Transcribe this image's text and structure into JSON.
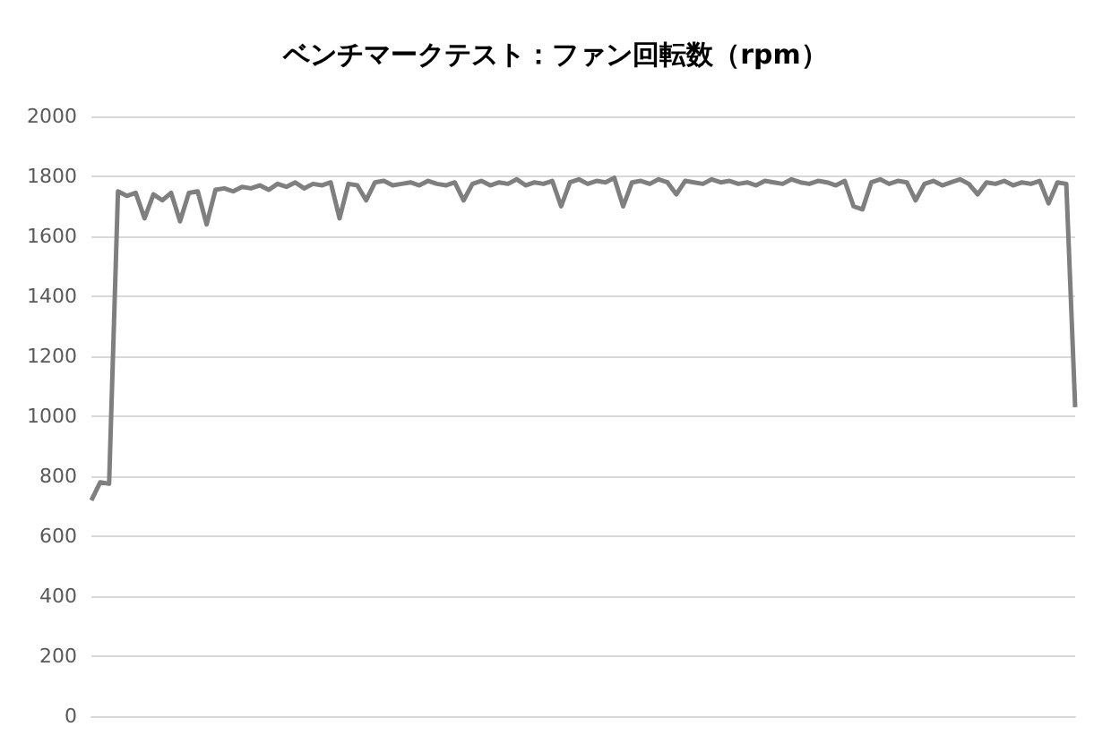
{
  "chart_data": {
    "type": "line",
    "title": "ベンチマークテスト：ファン回転数（rpm）",
    "categories": [
      null,
      null,
      null,
      null,
      null,
      null,
      null,
      null,
      null,
      null,
      null,
      null,
      null,
      null,
      null,
      null,
      null,
      null,
      null,
      null,
      null,
      null,
      null,
      null,
      null,
      null,
      null,
      null,
      null,
      null,
      null,
      null,
      null,
      null,
      null,
      null,
      null,
      null,
      null,
      null,
      null,
      null,
      null,
      null,
      null,
      null,
      null,
      null,
      null,
      null,
      null,
      null,
      null,
      null,
      null,
      null,
      null,
      null,
      null,
      null,
      null,
      null,
      null,
      null,
      null,
      null,
      null,
      null,
      null,
      null,
      null,
      null,
      null,
      null,
      null,
      null,
      null,
      null,
      null,
      null,
      null,
      null,
      null,
      null,
      null,
      null,
      null,
      null,
      null,
      null,
      null,
      null,
      null,
      null,
      null,
      null,
      null,
      null,
      null,
      null,
      null,
      null,
      null,
      null,
      null,
      null,
      null,
      null,
      null,
      null,
      null,
      null
    ],
    "series": [
      {
        "color": "#7f7f7f",
        "values": [
          720,
          780,
          775,
          1750,
          1735,
          1745,
          1660,
          1740,
          1720,
          1745,
          1650,
          1745,
          1750,
          1640,
          1755,
          1760,
          1750,
          1765,
          1760,
          1770,
          1755,
          1775,
          1765,
          1780,
          1760,
          1775,
          1770,
          1780,
          1660,
          1775,
          1770,
          1720,
          1780,
          1785,
          1770,
          1775,
          1780,
          1770,
          1785,
          1775,
          1770,
          1780,
          1720,
          1775,
          1785,
          1770,
          1780,
          1775,
          1790,
          1770,
          1780,
          1775,
          1785,
          1700,
          1780,
          1790,
          1775,
          1785,
          1780,
          1795,
          1700,
          1780,
          1785,
          1775,
          1790,
          1780,
          1740,
          1785,
          1780,
          1775,
          1790,
          1780,
          1785,
          1775,
          1780,
          1770,
          1785,
          1780,
          1775,
          1790,
          1780,
          1775,
          1785,
          1780,
          1770,
          1785,
          1700,
          1690,
          1780,
          1790,
          1775,
          1785,
          1780,
          1720,
          1775,
          1785,
          1770,
          1780,
          1790,
          1775,
          1740,
          1780,
          1775,
          1785,
          1770,
          1780,
          1775,
          1785,
          1710,
          1780,
          1775,
          1030
        ]
      }
    ],
    "ylim": [
      0,
      2000
    ],
    "yticks": [
      0,
      200,
      400,
      600,
      800,
      1000,
      1200,
      1400,
      1600,
      1800,
      2000
    ],
    "grid": "y",
    "tick_labels": "y"
  }
}
